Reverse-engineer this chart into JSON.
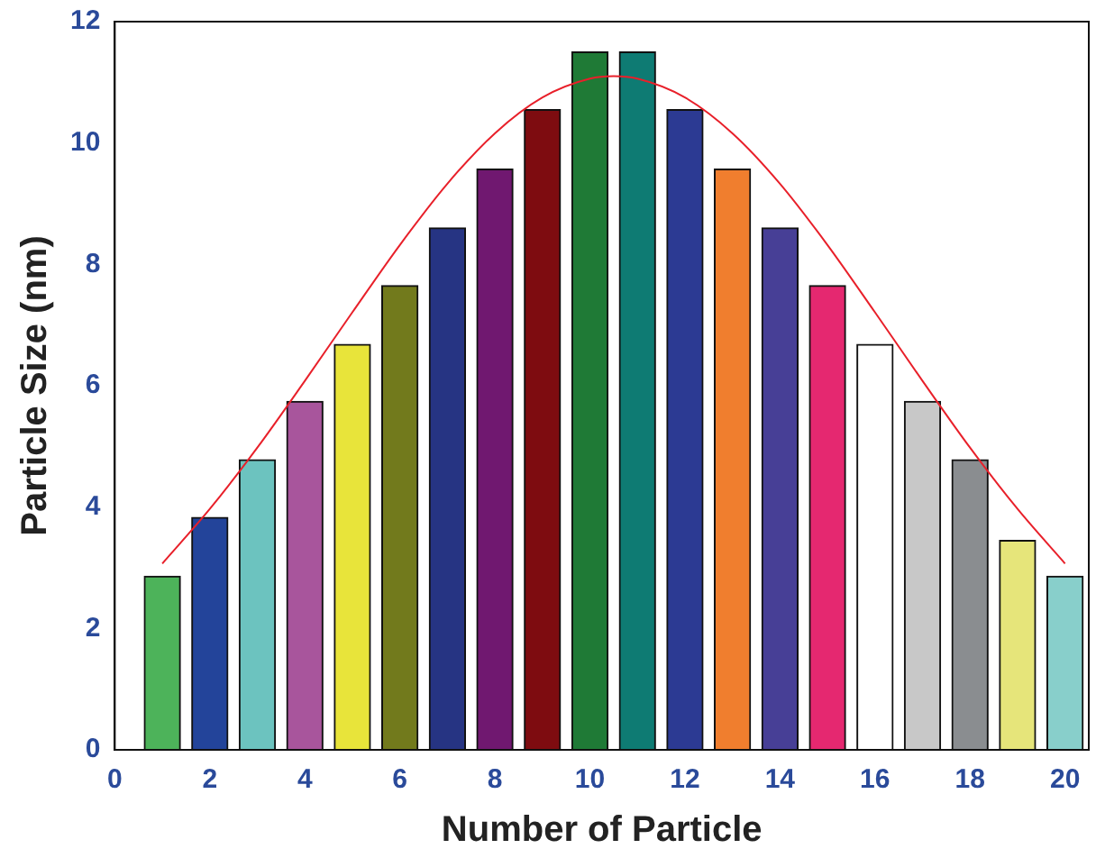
{
  "chart_data": {
    "type": "bar",
    "xlabel": "Number of Particle",
    "ylabel": "Particle Size (nm)",
    "x": [
      1,
      2,
      3,
      4,
      5,
      6,
      7,
      8,
      9,
      10,
      11,
      12,
      13,
      14,
      15,
      16,
      17,
      18,
      19,
      20
    ],
    "xlim": [
      0,
      20.5
    ],
    "xticks": [
      0,
      2,
      4,
      6,
      8,
      10,
      12,
      14,
      16,
      18,
      20
    ],
    "ylim": [
      0,
      12
    ],
    "yticks": [
      0,
      2,
      4,
      6,
      8,
      10,
      12
    ],
    "grid": false,
    "legend": false,
    "series": [
      {
        "values": [
          2.86,
          3.83,
          4.78,
          5.74,
          6.68,
          7.65,
          8.6,
          9.57,
          10.55,
          11.5,
          11.5,
          10.55,
          9.57,
          8.6,
          7.65,
          6.68,
          5.74,
          4.78,
          3.45,
          2.86
        ],
        "colors": [
          "#4db35a",
          "#23449a",
          "#6cc3bf",
          "#a8559c",
          "#e8e43a",
          "#727a1c",
          "#263483",
          "#701870",
          "#7e0c10",
          "#1f7a36",
          "#0e7b73",
          "#2c3a93",
          "#f07e2e",
          "#473f96",
          "#e52870",
          "#ffffff",
          "#c8c8c8",
          "#8a8d90",
          "#e6e57a",
          "#88cfcb"
        ]
      },
      {
        "type": "line",
        "color": "#e8202a",
        "x": [
          1,
          2,
          3,
          4,
          5,
          6,
          7,
          8,
          9,
          10,
          10.5,
          11,
          12,
          13,
          14,
          15,
          16,
          17,
          18,
          19,
          20
        ],
        "values": [
          3.07,
          3.97,
          4.98,
          6.08,
          7.21,
          8.32,
          9.33,
          10.16,
          10.75,
          11.06,
          11.1,
          11.06,
          10.75,
          10.16,
          9.33,
          8.32,
          7.21,
          6.08,
          4.98,
          3.97,
          3.07
        ]
      }
    ]
  }
}
